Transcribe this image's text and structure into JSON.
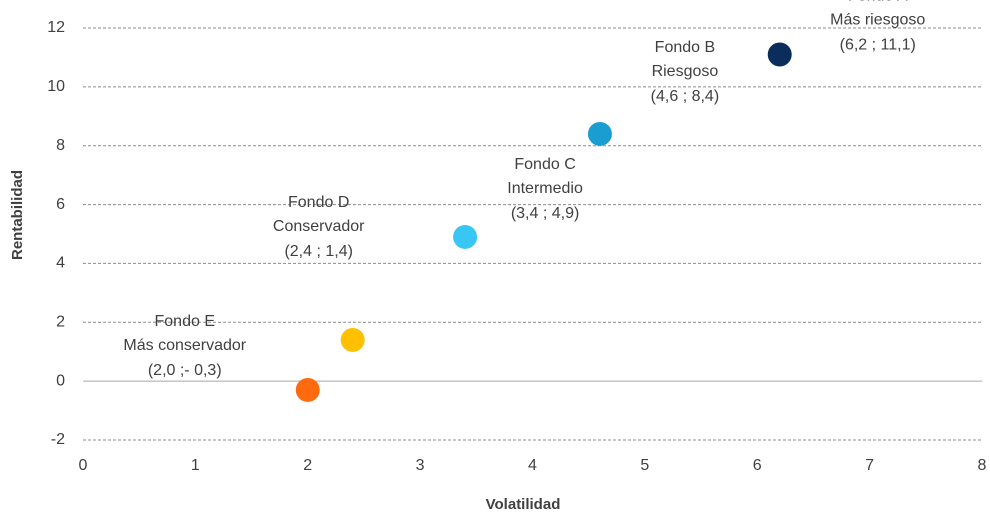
{
  "chart_data": {
    "type": "scatter",
    "x_label": "Volatilidad",
    "y_label": "Rentabilidad",
    "xlim": [
      0,
      8
    ],
    "xticks": [
      0,
      1,
      2,
      3,
      4,
      5,
      6,
      7,
      8
    ],
    "ylim": [
      -2,
      12
    ],
    "yticks": [
      -2,
      0,
      2,
      4,
      6,
      8,
      10,
      12
    ],
    "grid": true,
    "series": [
      {
        "name": "Fondo A",
        "description": "Más riesgoso",
        "color": "#0b2d5b",
        "x": [
          6.2
        ],
        "values": [
          11.1
        ],
        "value_labels": [
          "(6,2 ; 11,1)"
        ]
      },
      {
        "name": "Fondo B",
        "description": "Riesgoso",
        "color": "#1a9dd0",
        "x": [
          4.6
        ],
        "values": [
          8.4
        ],
        "value_labels": [
          "(4,6 ; 8,4)"
        ]
      },
      {
        "name": "Fondo C",
        "description": "Intermedio",
        "color": "#38c6f4",
        "x": [
          3.4
        ],
        "values": [
          4.9
        ],
        "value_labels": [
          "(3,4 ; 4,9)"
        ]
      },
      {
        "name": "Fondo D",
        "description": "Conservador",
        "color": "#ffc000",
        "x": [
          2.4
        ],
        "values": [
          1.4
        ],
        "value_labels": [
          "(2,4 ; 1,4)"
        ]
      },
      {
        "name": "Fondo E",
        "description": "Más conservador",
        "color": "#ff6a0e",
        "x": [
          2.0
        ],
        "values": [
          -0.3
        ],
        "value_labels": [
          "(2,0 ;- 0,3)"
        ]
      }
    ]
  }
}
